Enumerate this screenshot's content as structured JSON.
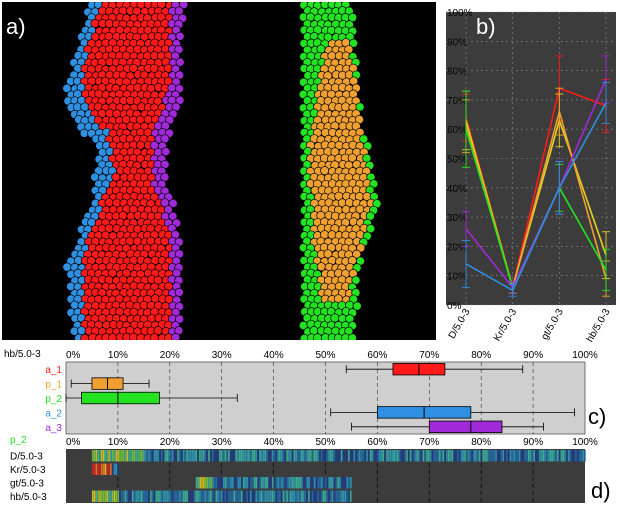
{
  "panel_labels": {
    "a": "a)",
    "b": "b)",
    "c": "c)",
    "d": "d)"
  },
  "colors": {
    "red": "#ff1a1a",
    "blue": "#2f8fe0",
    "purple": "#a02ad8",
    "green": "#22e222",
    "orange": "#f0a030",
    "yellow": "#e8d020",
    "bg_dark": "#3c3c3c",
    "bg_light": "#cfcfcf"
  },
  "chart_data": [
    {
      "type": "line",
      "panel": "b",
      "categories": [
        "D/5.0-3",
        "Kr/5.0-3",
        "gt/5.0-3",
        "hb/5.0-3"
      ],
      "ylim": [
        0,
        100
      ],
      "yticks": [
        "0%",
        "10%",
        "20%",
        "30%",
        "40%",
        "50%",
        "60%",
        "70%",
        "80%",
        "90%",
        "100%"
      ],
      "grid": true,
      "series": [
        {
          "color": "#ff1a1a",
          "values": [
            64,
            6,
            74,
            68
          ],
          "err": [
            8,
            2,
            11,
            9
          ]
        },
        {
          "color": "#e8d020",
          "values": [
            63,
            6,
            63,
            17
          ],
          "err": [
            10,
            2,
            9,
            8
          ]
        },
        {
          "color": "#f0a030",
          "values": [
            61,
            6,
            66,
            9
          ],
          "err": [
            9,
            2,
            8,
            6
          ]
        },
        {
          "color": "#22e222",
          "values": [
            60,
            6,
            40,
            12
          ],
          "err": [
            13,
            2,
            8,
            7
          ]
        },
        {
          "color": "#a02ad8",
          "values": [
            26,
            6,
            40,
            77
          ],
          "err": [
            6,
            2,
            9,
            8
          ]
        },
        {
          "color": "#2f8fe0",
          "values": [
            14,
            5,
            40,
            69
          ],
          "err": [
            8,
            2,
            9,
            7
          ]
        }
      ]
    },
    {
      "type": "box",
      "panel": "c",
      "header": "hb/5.0-3",
      "xlim": [
        0,
        100
      ],
      "xticks": [
        "0%",
        "10%",
        "20%",
        "30%",
        "40%",
        "50%",
        "60%",
        "70%",
        "80%",
        "90%",
        "100%"
      ],
      "series": [
        {
          "name": "a_1",
          "color": "#ff1a1a",
          "whisker": [
            54,
            88
          ],
          "box": [
            63,
            73
          ],
          "median": 68
        },
        {
          "name": "p_1",
          "color": "#f0a030",
          "whisker": [
            1,
            16
          ],
          "box": [
            5,
            11
          ],
          "median": 8
        },
        {
          "name": "p_2",
          "color": "#22e222",
          "whisker": [
            0,
            33
          ],
          "box": [
            3,
            18
          ],
          "median": 10
        },
        {
          "name": "a_2",
          "color": "#2f8fe0",
          "whisker": [
            51,
            98
          ],
          "box": [
            60,
            78
          ],
          "median": 69
        },
        {
          "name": "a_3",
          "color": "#a02ad8",
          "whisker": [
            55,
            92
          ],
          "box": [
            70,
            84
          ],
          "median": 78
        }
      ]
    },
    {
      "type": "heatmap",
      "panel": "d",
      "header": "p_2",
      "xlim": [
        0,
        100
      ],
      "xticks": [
        "0%",
        "10%",
        "20%",
        "30%",
        "40%",
        "50%",
        "60%",
        "70%",
        "80%",
        "90%",
        "100%"
      ],
      "rows": [
        {
          "label": "D/5.0-3",
          "range": [
            5,
            100
          ]
        },
        {
          "label": "Kr/5.0-3",
          "range": [
            5,
            10
          ]
        },
        {
          "label": "gt/5.0-3",
          "range": [
            25,
            55
          ]
        },
        {
          "label": "hb/5.0-3",
          "range": [
            5,
            55
          ]
        }
      ]
    }
  ]
}
